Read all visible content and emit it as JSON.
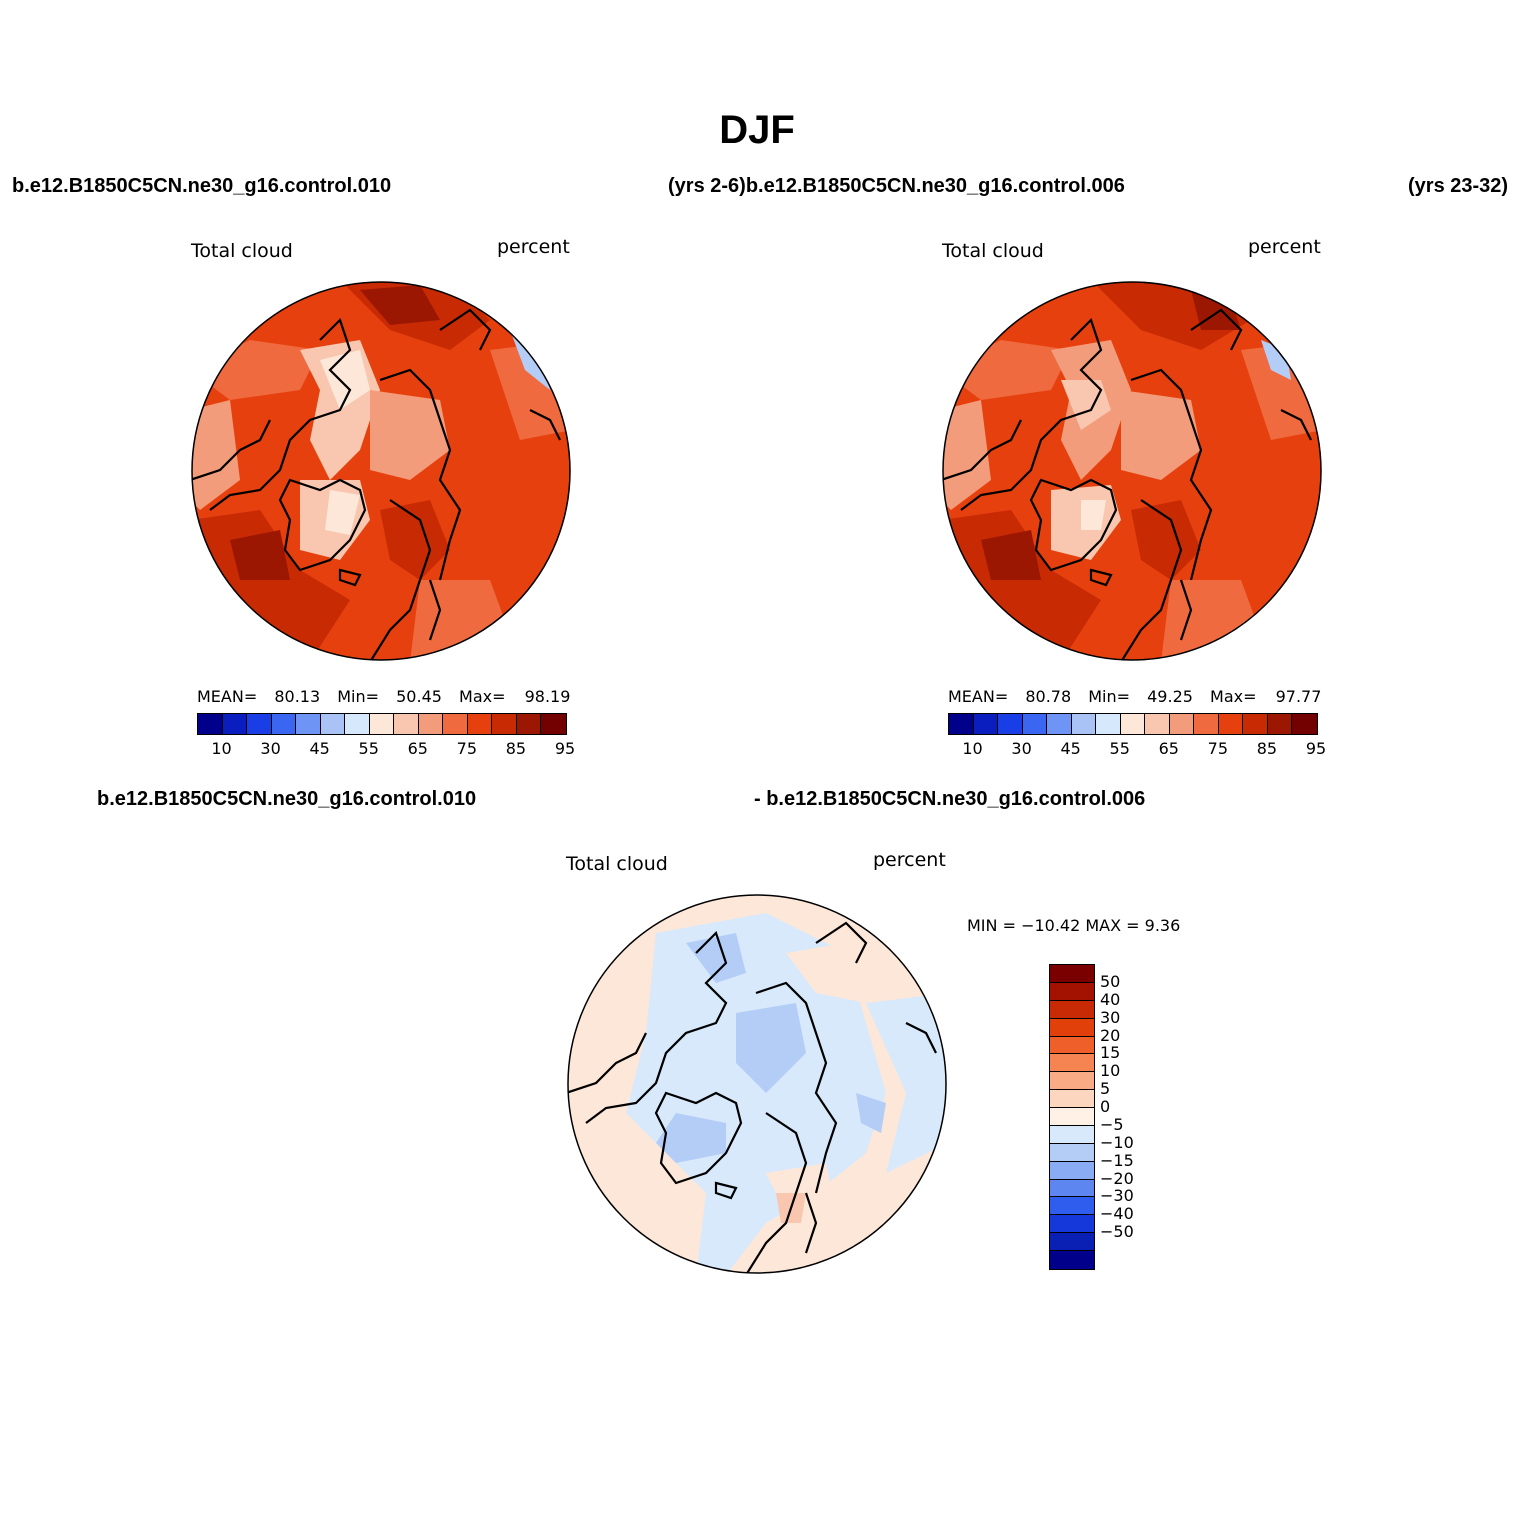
{
  "figure": {
    "title": "DJF"
  },
  "headers": {
    "left_case": "b.e12.B1850C5CN.ne30_g16.control.010",
    "middle": "(yrs 2-6)b.e12.B1850C5CN.ne30_g16.control.006",
    "right_clipped": "(yrs 23-32)",
    "diff_left": "b.e12.B1850C5CN.ne30_g16.control.010",
    "diff_right": "- b.e12.B1850C5CN.ne30_g16.control.006"
  },
  "panels": [
    {
      "variable": "Total cloud",
      "units": "percent",
      "stats_mean_label": "MEAN=",
      "mean": "80.13",
      "stats_min_label": "Min=",
      "min": "50.45",
      "stats_max_label": "Max=",
      "max": "98.19"
    },
    {
      "variable": "Total cloud",
      "units": "percent",
      "stats_mean_label": "MEAN=",
      "mean": "80.78",
      "stats_min_label": "Min=",
      "min": "49.25",
      "stats_max_label": "Max=",
      "max": "97.77"
    },
    {
      "variable": "Total cloud",
      "units": "percent",
      "minmax_text": "MIN = −10.42  MAX =     9.36"
    }
  ],
  "colorbar_abs": {
    "colors": [
      "#00008b",
      "#0a1ebf",
      "#1a3ee6",
      "#3a66f2",
      "#6e94f5",
      "#a9c3f7",
      "#d6e8fc",
      "#fde7d9",
      "#f9c7b0",
      "#f39c7b",
      "#ef6a3f",
      "#e6400e",
      "#c82a04",
      "#9b1702",
      "#730101"
    ],
    "tick_labels": [
      "10",
      "30",
      "45",
      "55",
      "65",
      "75",
      "85",
      "95"
    ]
  },
  "colorbar_diff": {
    "colors": [
      "#7a0000",
      "#a31200",
      "#c72a04",
      "#e2400a",
      "#ef5f2a",
      "#f58452",
      "#f9ab85",
      "#fdd6c0",
      "#fff1e6",
      "#d7e9fb",
      "#b4cdf7",
      "#8aacf4",
      "#5e86f0",
      "#2f5ded",
      "#1438d9",
      "#0a1fb3",
      "#00008b"
    ],
    "labels": [
      "50",
      "40",
      "30",
      "20",
      "15",
      "10",
      "5",
      "0",
      "−5",
      "−10",
      "−15",
      "−20",
      "−30",
      "−40",
      "−50"
    ]
  },
  "map_palette": {
    "abs_base": "#e6400e",
    "abs_dark": "#c82a04",
    "abs_darker": "#9b1702",
    "abs_mid": "#ef6a3f",
    "abs_light": "#f39c7b",
    "abs_lighter": "#f9c7b0",
    "abs_pale": "#fde7d9",
    "diff_pos": "#fde7d9",
    "diff_neg": "#d7e9fb",
    "diff_neg2": "#b4cdf7"
  }
}
